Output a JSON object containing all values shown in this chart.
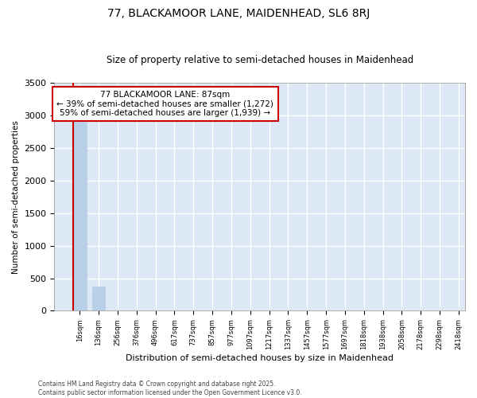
{
  "title": "77, BLACKAMOOR LANE, MAIDENHEAD, SL6 8RJ",
  "subtitle": "Size of property relative to semi-detached houses in Maidenhead",
  "xlabel": "Distribution of semi-detached houses by size in Maidenhead",
  "ylabel": "Number of semi-detached properties",
  "footnote": "Contains HM Land Registry data © Crown copyright and database right 2025.\nContains public sector information licensed under the Open Government Licence v3.0.",
  "bins": [
    "16sqm",
    "136sqm",
    "256sqm",
    "376sqm",
    "496sqm",
    "617sqm",
    "737sqm",
    "857sqm",
    "977sqm",
    "1097sqm",
    "1217sqm",
    "1337sqm",
    "1457sqm",
    "1577sqm",
    "1697sqm",
    "1818sqm",
    "1938sqm",
    "2058sqm",
    "2178sqm",
    "2298sqm",
    "2418sqm"
  ],
  "values": [
    2900,
    375,
    0,
    0,
    0,
    0,
    0,
    0,
    0,
    0,
    0,
    0,
    0,
    0,
    0,
    0,
    0,
    0,
    0,
    0
  ],
  "bar_color": "#b8cfe8",
  "bar_edge_color": "#b8cfe8",
  "background_color": "#dce8f5",
  "grid_color": "#ffffff",
  "property_line_color": "#cc0000",
  "annotation_text": "77 BLACKAMOOR LANE: 87sqm\n← 39% of semi-detached houses are smaller (1,272)\n59% of semi-detached houses are larger (1,939) →",
  "annotation_box_color": "#cc0000",
  "ylim": [
    0,
    3500
  ],
  "yticks": [
    0,
    500,
    1000,
    1500,
    2000,
    2500,
    3000,
    3500
  ]
}
